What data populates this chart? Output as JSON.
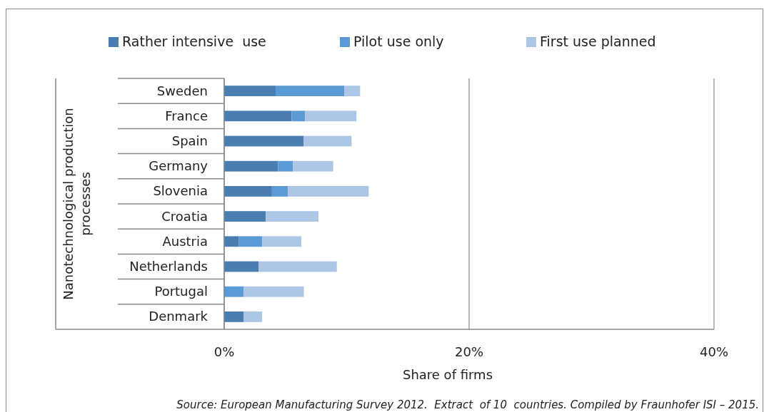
{
  "chart_data": {
    "type": "bar",
    "orientation": "horizontal",
    "stacked": true,
    "categories": [
      "Sweden",
      "France",
      "Spain",
      "Germany",
      "Slovenia",
      "Croatia",
      "Austria",
      "Netherlands",
      "Portugal",
      "Denmark"
    ],
    "series": [
      {
        "name": "Rather intensive  use",
        "color": "#4a7eb0",
        "values": [
          4.2,
          5.5,
          6.5,
          4.4,
          3.9,
          3.4,
          1.2,
          2.8,
          0,
          1.6
        ]
      },
      {
        "name": "Pilot use only",
        "color": "#5b9bd5",
        "values": [
          5.6,
          1.1,
          0,
          1.2,
          1.3,
          0,
          1.9,
          0,
          1.6,
          0
        ]
      },
      {
        "name": "First use planned",
        "color": "#adc6e5",
        "values": [
          1.3,
          4.2,
          3.9,
          3.3,
          6.6,
          4.3,
          3.2,
          6.4,
          4.9,
          1.5
        ]
      }
    ],
    "xlim": [
      0,
      40
    ],
    "xticks": [
      {
        "value": 0,
        "label": "0%"
      },
      {
        "value": 20,
        "label": "20%"
      },
      {
        "value": 40,
        "label": "40%"
      }
    ],
    "xlabel": "Share of firms",
    "ylabel": "Nanotechnological production processes",
    "grid": "x",
    "legend": "top",
    "annotations": [
      "Source: European Manufacturing Survey 2012.  Extract  of 10  countries. Compiled by Fraunhofer ISI – 2015."
    ]
  }
}
